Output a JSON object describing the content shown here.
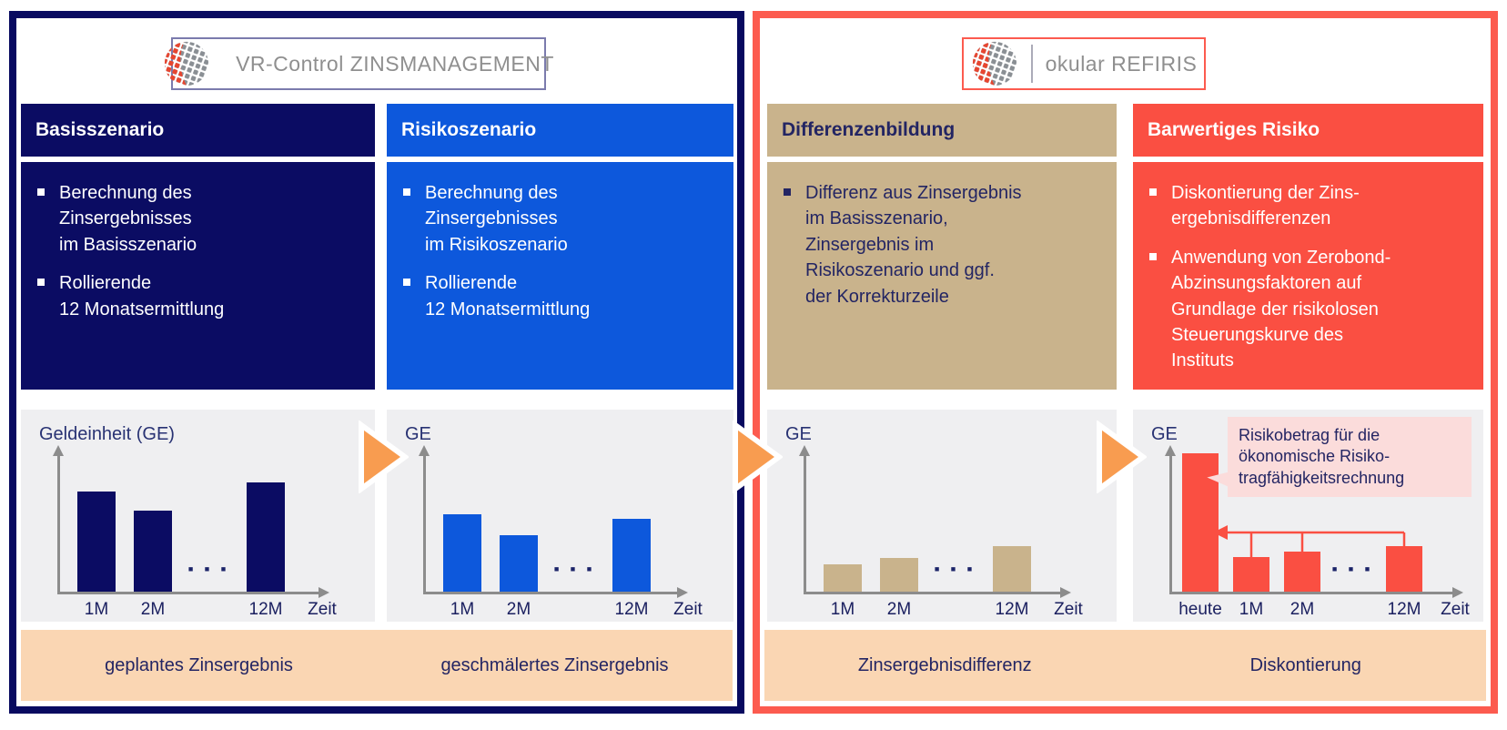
{
  "colors": {
    "navy": "#0B0C63",
    "blue": "#0D58DC",
    "tan": "#C9B38C",
    "red": "#FA4F42",
    "navy_border": "#080A60",
    "red_border": "#FC5B4F",
    "orange_arrow": "#F89C50",
    "peach_caption": "#FAD6B3",
    "chart_background": "#EFEFF1",
    "callout_pink": "#FBDCDB",
    "axis_gray": "#8C8C8C",
    "navy_text": "#232563",
    "logo_gray_text": "#8F8F8F"
  },
  "left_section": {
    "logo_text": "VR-Control ZINSMANAGEMENT",
    "panels": [
      {
        "title": "Basisszenario",
        "bullets": [
          "Berechnung des\nZinsergebnisses\nim Basisszenario",
          "Rollierende\n12 Monatsermittlung"
        ]
      },
      {
        "title": "Risikoszenario",
        "bullets": [
          "Berechnung des\nZinsergebnisses\nim Risikoszenario",
          "Rollierende\n12 Monatsermittlung"
        ]
      }
    ],
    "captions": [
      "geplantes Zinsergebnis",
      "geschmälertes Zinsergebnis"
    ]
  },
  "right_section": {
    "logo_text": "okular REFIRIS",
    "panels": [
      {
        "title": "Differenzenbildung",
        "bullets": [
          "Differenz aus Zinsergebnis\nim Basisszenario,\nZinsergebnis im\nRisikoszenario und ggf.\nder Korrekturzeile"
        ]
      },
      {
        "title": "Barwertiges Risiko",
        "bullets": [
          "Diskontierung der Zins-\nergebnisdifferenzen",
          "Anwendung von Zerobond-\nAbzinsungsfaktoren auf\nGrundlage der risikolosen\nSteuerungskurve des\nInstituts"
        ]
      }
    ],
    "captions": [
      "Zinsergebnisdifferenz",
      "Diskontierung"
    ]
  },
  "chart_data": [
    {
      "type": "bar",
      "id": "basisszenario-zinsergebnis",
      "y_label": "Geldeinheit (GE)",
      "x_axis_label": "Zeit",
      "bar_color": "#0B0C63",
      "slots": [
        {
          "label": "1M",
          "value": 110
        },
        {
          "label": "2M",
          "value": 89
        },
        {
          "dots": true
        },
        {
          "label": "12M",
          "value": 120
        }
      ]
    },
    {
      "type": "bar",
      "id": "risikoszenario-zinsergebnis",
      "y_label": "GE",
      "x_axis_label": "Zeit",
      "bar_color": "#0D58DC",
      "slots": [
        {
          "label": "1M",
          "value": 85
        },
        {
          "label": "2M",
          "value": 62
        },
        {
          "dots": true
        },
        {
          "label": "12M",
          "value": 80
        }
      ]
    },
    {
      "type": "bar",
      "id": "zinsergebnisdifferenz",
      "y_label": "GE",
      "x_axis_label": "Zeit",
      "bar_color": "#C9B38C",
      "slots": [
        {
          "label": "1M",
          "value": 30
        },
        {
          "label": "2M",
          "value": 37
        },
        {
          "dots": true
        },
        {
          "label": "12M",
          "value": 50
        }
      ]
    },
    {
      "type": "bar",
      "id": "barwertiges-risiko",
      "y_label": "GE",
      "x_axis_label": "Zeit",
      "bar_color": "#FA4F42",
      "callout": "Risikobetrag für die\nökonomische Risiko-\ntragfähigkeitsrechnung",
      "slots": [
        {
          "label": "heute",
          "value": 152
        },
        {
          "label": "1M",
          "value": 38
        },
        {
          "label": "2M",
          "value": 44
        },
        {
          "dots": true
        },
        {
          "label": "12M",
          "value": 50
        }
      ]
    }
  ]
}
